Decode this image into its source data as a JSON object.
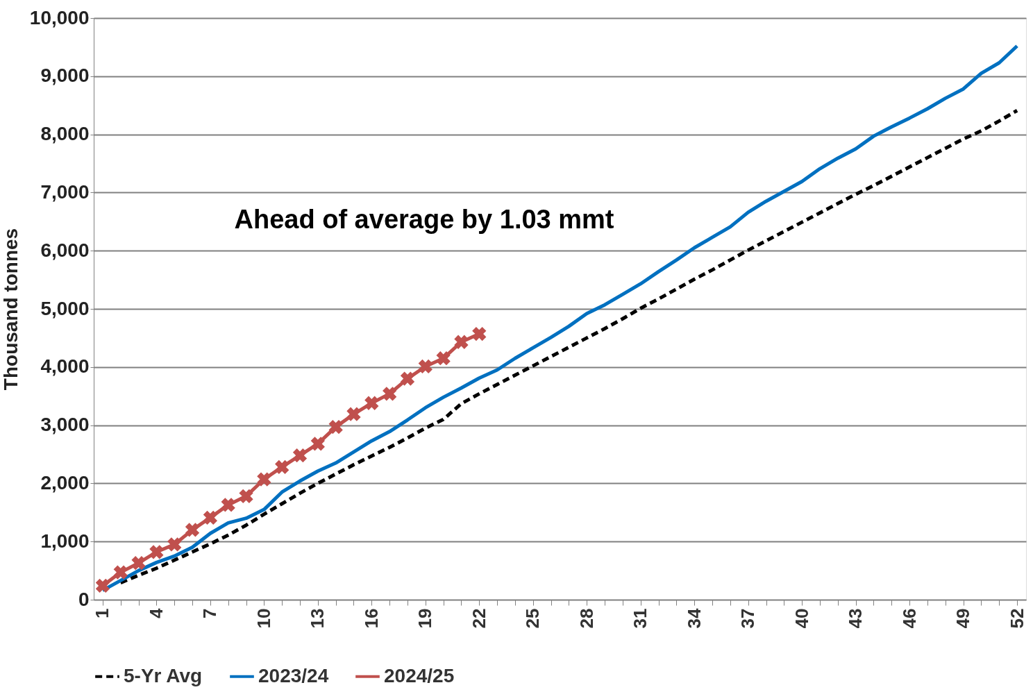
{
  "chart_data": {
    "type": "line",
    "ylabel": "Thousand tonnes",
    "categories": [
      "1",
      null,
      null,
      "4",
      null,
      null,
      "7",
      null,
      null,
      "10",
      null,
      null,
      "13",
      null,
      null,
      "16",
      null,
      null,
      "19",
      null,
      null,
      "22",
      null,
      null,
      "25",
      null,
      null,
      "28",
      null,
      null,
      "31",
      null,
      null,
      "34",
      null,
      null,
      "37",
      null,
      null,
      "40",
      null,
      null,
      "43",
      null,
      null,
      "46",
      null,
      null,
      "49",
      null,
      null,
      "52"
    ],
    "series": [
      {
        "name": "5-Yr Avg",
        "color": "#000000",
        "line_style": "dashed",
        "marker": "none",
        "values": [
          null,
          290,
          420,
          540,
          680,
          820,
          960,
          1110,
          1280,
          1470,
          1650,
          1830,
          2000,
          2160,
          2320,
          2470,
          2620,
          2780,
          2950,
          3100,
          3370,
          3540,
          3700,
          3860,
          4020,
          4180,
          4340,
          4500,
          4660,
          4830,
          5010,
          5170,
          5340,
          5510,
          5670,
          5840,
          6010,
          6170,
          6330,
          6490,
          6650,
          6810,
          6970,
          7120,
          7280,
          7440,
          7600,
          7760,
          7920,
          8060,
          8230,
          8410
        ]
      },
      {
        "name": "2023/24",
        "color": "#0070c0",
        "line_style": "solid",
        "marker": "none",
        "values": [
          160,
          330,
          500,
          640,
          750,
          900,
          1140,
          1320,
          1400,
          1550,
          1850,
          2040,
          2210,
          2350,
          2540,
          2730,
          2890,
          3090,
          3300,
          3480,
          3640,
          3810,
          3950,
          4150,
          4330,
          4510,
          4700,
          4920,
          5070,
          5250,
          5430,
          5640,
          5840,
          6050,
          6230,
          6410,
          6660,
          6850,
          7020,
          7190,
          7410,
          7590,
          7750,
          7970,
          8130,
          8280,
          8440,
          8620,
          8780,
          9050,
          9230,
          9520
        ]
      },
      {
        "name": "2024/25",
        "color": "#c0504d",
        "line_style": "solid",
        "marker": "cross",
        "values": [
          240,
          470,
          630,
          820,
          950,
          1200,
          1410,
          1630,
          1780,
          2070,
          2280,
          2480,
          2680,
          2970,
          3190,
          3380,
          3540,
          3800,
          4010,
          4150,
          4430,
          4570,
          null,
          null,
          null,
          null,
          null,
          null,
          null,
          null,
          null,
          null,
          null,
          null,
          null,
          null,
          null,
          null,
          null,
          null,
          null,
          null,
          null,
          null,
          null,
          null,
          null,
          null,
          null,
          null,
          null,
          null
        ]
      }
    ],
    "ylim": [
      0,
      10000
    ],
    "yticks": [
      0,
      {
        "value": 1000,
        "label": "1,000"
      },
      {
        "value": 2000,
        "label": "2,000"
      },
      {
        "value": 3000,
        "label": "3,000"
      },
      {
        "value": 4000,
        "label": "4,000"
      },
      {
        "value": 5000,
        "label": "5,000"
      },
      {
        "value": 6000,
        "label": "6,000"
      },
      {
        "value": 7000,
        "label": "7,000"
      },
      {
        "value": 8000,
        "label": "8,000"
      },
      {
        "value": 9000,
        "label": "9,000"
      },
      {
        "value": 10000,
        "label": "10,000"
      }
    ],
    "grid": "y",
    "legend": "bottom",
    "annotations": [
      "Ahead of average by 1.03 mmt"
    ]
  }
}
